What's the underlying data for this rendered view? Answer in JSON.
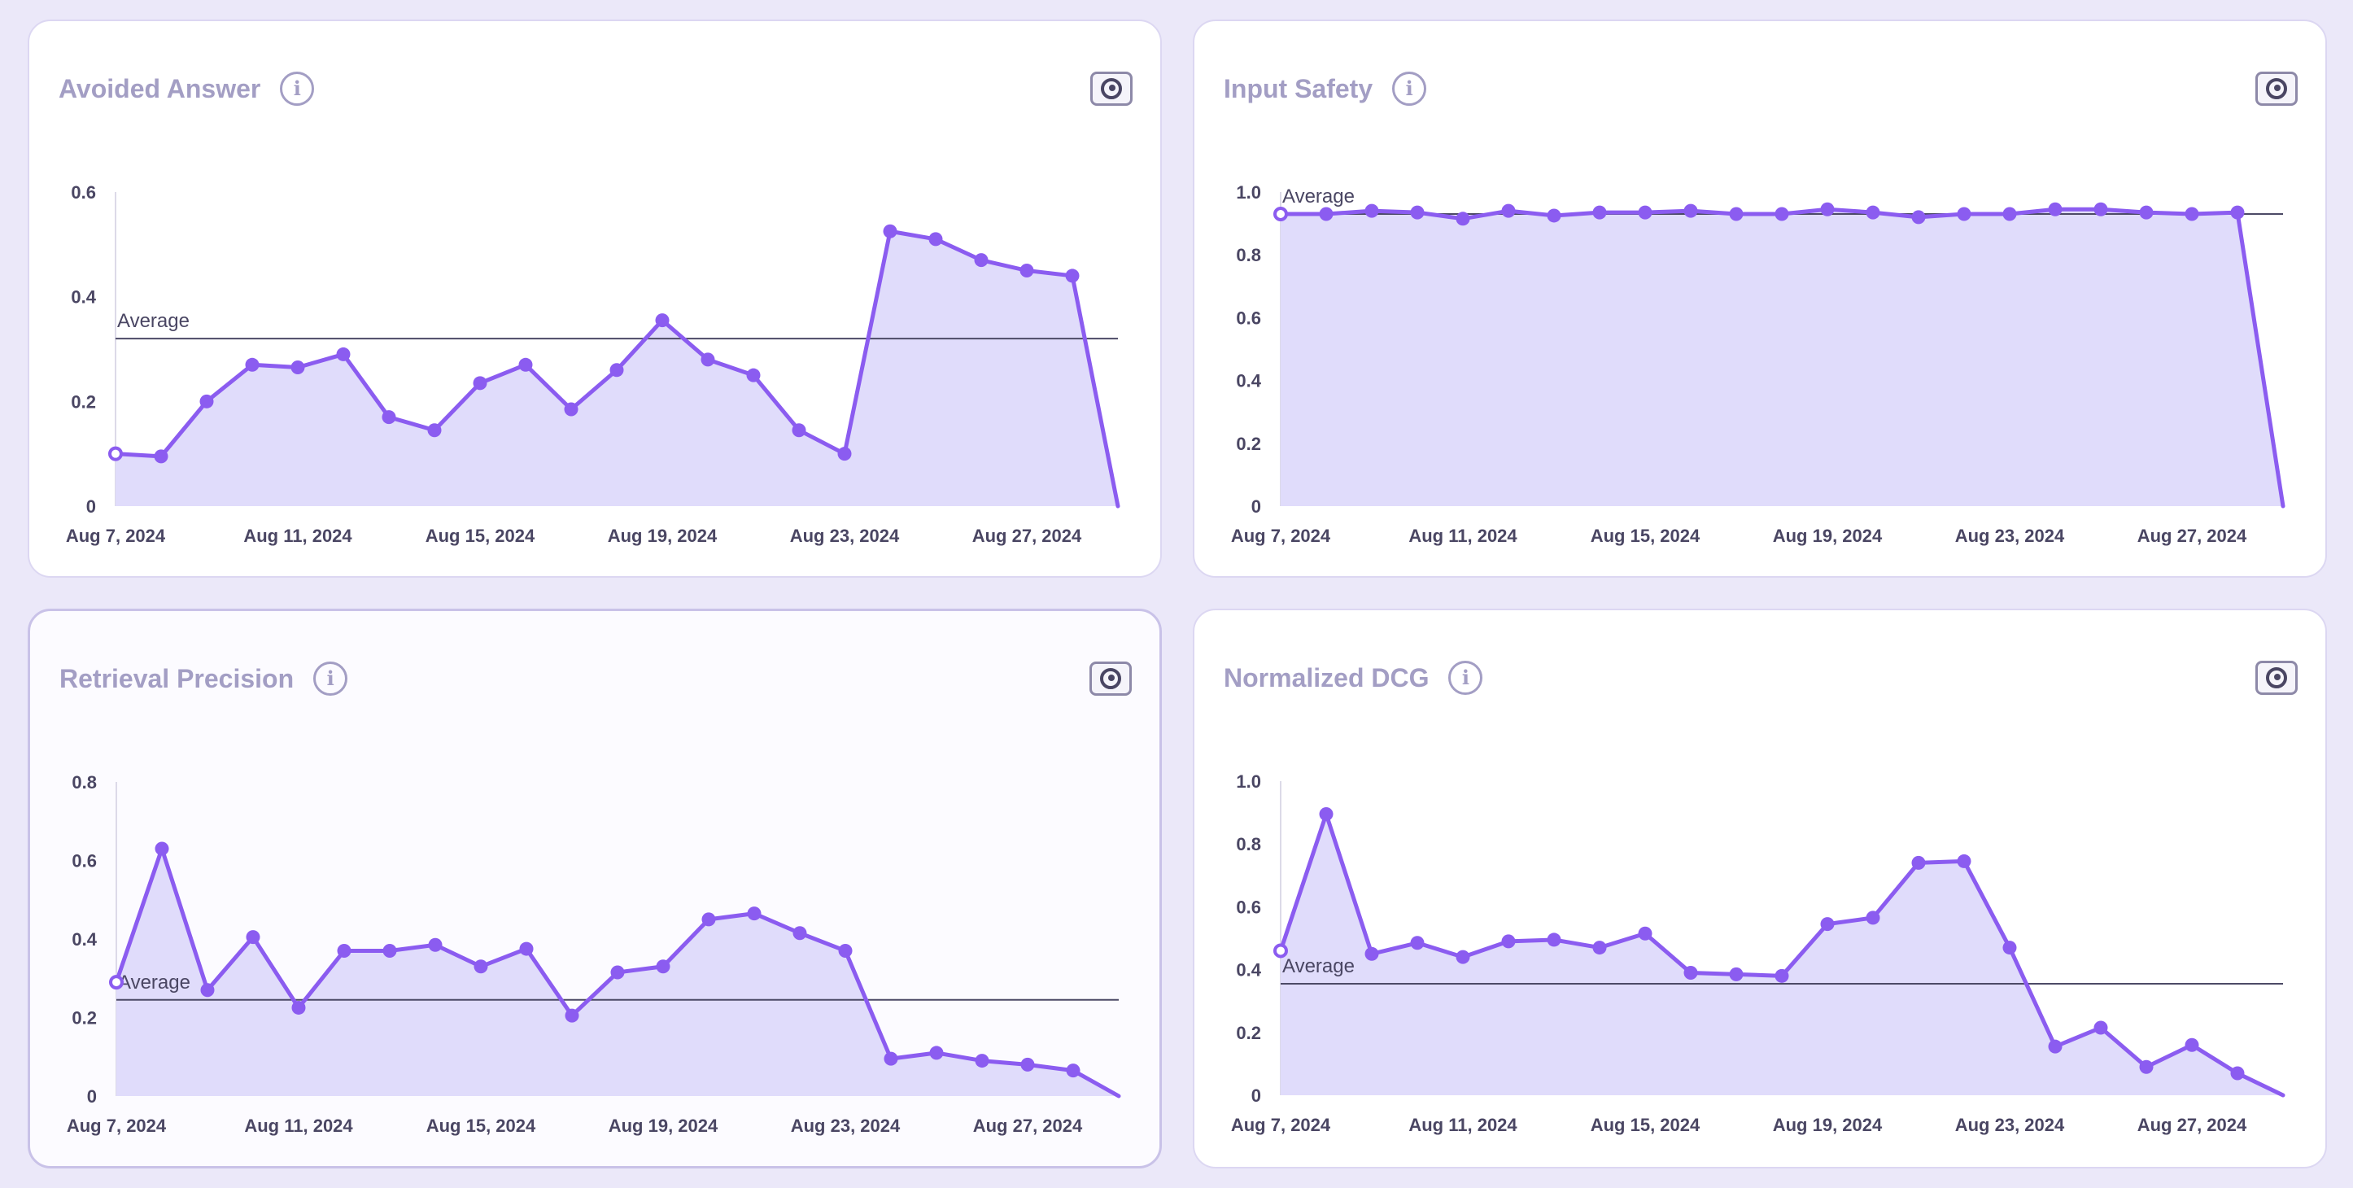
{
  "colors": {
    "line": "#8b5cf0",
    "fill": "#e0dcfb",
    "average_line": "#4c4a66",
    "axis": "#dcdae8"
  },
  "icons": {
    "info": "info-icon",
    "snapshot": "snapshot-icon"
  },
  "average_label": "Average",
  "chart_data": [
    {
      "id": "avoided-answer",
      "type": "area",
      "title": "Avoided Answer",
      "x_tick_labels": [
        "Aug 7, 2024",
        "Aug 11, 2024",
        "Aug 15, 2024",
        "Aug 19, 2024",
        "Aug 23, 2024",
        "Aug 27, 2024"
      ],
      "x_tick_index": [
        0,
        4,
        8,
        12,
        16,
        20
      ],
      "y_ticks": [
        0,
        0.2,
        0.4,
        0.6
      ],
      "y_tick_labels": [
        "0",
        "0.2",
        "0.4",
        "0.6"
      ],
      "ylim": [
        0,
        0.6
      ],
      "average": 0.32,
      "values": [
        0.1,
        0.095,
        0.2,
        0.27,
        0.265,
        0.29,
        0.17,
        0.145,
        0.235,
        0.27,
        0.185,
        0.26,
        0.355,
        0.28,
        0.25,
        0.145,
        0.1,
        0.525,
        0.51,
        0.47,
        0.45,
        0.44,
        0.0
      ]
    },
    {
      "id": "input-safety",
      "type": "area",
      "title": "Input Safety",
      "x_tick_labels": [
        "Aug 7, 2024",
        "Aug 11, 2024",
        "Aug 15, 2024",
        "Aug 19, 2024",
        "Aug 23, 2024",
        "Aug 27, 2024"
      ],
      "x_tick_index": [
        0,
        4,
        8,
        12,
        16,
        20
      ],
      "y_ticks": [
        0,
        0.2,
        0.4,
        0.6,
        0.8,
        1.0
      ],
      "y_tick_labels": [
        "0",
        "0.2",
        "0.4",
        "0.6",
        "0.8",
        "1.0"
      ],
      "ylim": [
        0,
        1.0
      ],
      "average": 0.93,
      "values": [
        0.93,
        0.93,
        0.94,
        0.935,
        0.915,
        0.94,
        0.925,
        0.935,
        0.935,
        0.94,
        0.93,
        0.93,
        0.945,
        0.935,
        0.92,
        0.93,
        0.93,
        0.945,
        0.945,
        0.935,
        0.93,
        0.935,
        0.0
      ]
    },
    {
      "id": "retrieval-precision",
      "type": "area",
      "title": "Retrieval Precision",
      "x_tick_labels": [
        "Aug 7, 2024",
        "Aug 11, 2024",
        "Aug 15, 2024",
        "Aug 19, 2024",
        "Aug 23, 2024",
        "Aug 27, 2024"
      ],
      "x_tick_index": [
        0,
        4,
        8,
        12,
        16,
        20
      ],
      "y_ticks": [
        0,
        0.2,
        0.4,
        0.6,
        0.8
      ],
      "y_tick_labels": [
        "0",
        "0.2",
        "0.4",
        "0.6",
        "0.8"
      ],
      "ylim": [
        0,
        0.8
      ],
      "average": 0.245,
      "values": [
        0.29,
        0.63,
        0.27,
        0.405,
        0.225,
        0.37,
        0.37,
        0.385,
        0.33,
        0.375,
        0.205,
        0.315,
        0.33,
        0.45,
        0.465,
        0.415,
        0.37,
        0.095,
        0.11,
        0.09,
        0.08,
        0.065,
        0.0
      ]
    },
    {
      "id": "normalized-dcg",
      "type": "area",
      "title": "Normalized DCG",
      "x_tick_labels": [
        "Aug 7, 2024",
        "Aug 11, 2024",
        "Aug 15, 2024",
        "Aug 19, 2024",
        "Aug 23, 2024",
        "Aug 27, 2024"
      ],
      "x_tick_index": [
        0,
        4,
        8,
        12,
        16,
        20
      ],
      "y_ticks": [
        0,
        0.2,
        0.4,
        0.6,
        0.8,
        1.0
      ],
      "y_tick_labels": [
        "0",
        "0.2",
        "0.4",
        "0.6",
        "0.8",
        "1.0"
      ],
      "ylim": [
        0,
        1.0
      ],
      "average": 0.355,
      "values": [
        0.46,
        0.895,
        0.45,
        0.485,
        0.44,
        0.49,
        0.495,
        0.47,
        0.515,
        0.39,
        0.385,
        0.38,
        0.545,
        0.565,
        0.74,
        0.745,
        0.47,
        0.155,
        0.215,
        0.09,
        0.16,
        0.07,
        0.0
      ]
    }
  ]
}
